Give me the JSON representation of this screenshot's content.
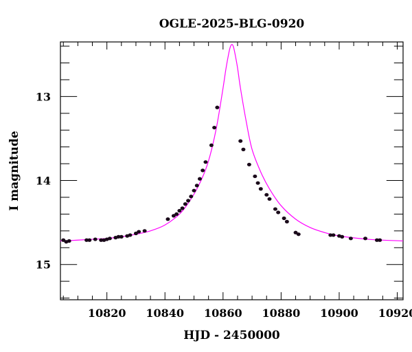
{
  "chart_data": {
    "type": "scatter",
    "title": "OGLE-2025-BLG-0920",
    "xlabel": "HJD - 2450000",
    "ylabel": "I magnitude",
    "xlim": [
      10804,
      10922
    ],
    "ylim": [
      15.42,
      12.35
    ],
    "y_inverted": true,
    "grid": false,
    "x_ticks": [
      10820,
      10840,
      10860,
      10880,
      10900,
      10920
    ],
    "x_tick_labels": [
      "10820",
      "10840",
      "10860",
      "10880",
      "10900",
      "10920"
    ],
    "y_ticks": [
      13,
      14,
      15
    ],
    "y_tick_labels": [
      "13",
      "14",
      "15"
    ],
    "x_minor_step": 5,
    "y_minor_step": 0.2,
    "model_color": "#ff00ff",
    "point_color": "#1a0a1a",
    "model": {
      "x": [
        10804,
        10810,
        10815,
        10820,
        10825,
        10830,
        10835,
        10840,
        10845,
        10848,
        10851,
        10854,
        10856,
        10858,
        10860,
        10861,
        10862,
        10862.5,
        10863,
        10863.5,
        10864,
        10865,
        10866,
        10868,
        10870,
        10873,
        10876,
        10880,
        10885,
        10890,
        10895,
        10900,
        10910,
        10922
      ],
      "y": [
        14.72,
        14.71,
        14.7,
        14.69,
        14.67,
        14.64,
        14.6,
        14.53,
        14.4,
        14.27,
        14.1,
        13.87,
        13.64,
        13.32,
        12.9,
        12.67,
        12.48,
        12.41,
        12.38,
        12.4,
        12.47,
        12.66,
        12.9,
        13.3,
        13.63,
        13.9,
        14.1,
        14.3,
        14.46,
        14.56,
        14.62,
        14.66,
        14.7,
        14.72
      ]
    },
    "series": [
      {
        "x": [
          10805,
          10806,
          10807,
          10813,
          10814,
          10816,
          10818,
          10819,
          10820,
          10821,
          10823,
          10824,
          10825,
          10827,
          10828,
          10830,
          10831,
          10833,
          10841,
          10843,
          10844,
          10845,
          10846,
          10847,
          10848,
          10849,
          10850,
          10851,
          10852,
          10853,
          10854,
          10856,
          10857,
          10858,
          10866,
          10867,
          10869,
          10871,
          10872,
          10873,
          10875,
          10876,
          10878,
          10879,
          10881,
          10882,
          10885,
          10886,
          10897,
          10898,
          10900,
          10901,
          10904,
          10909,
          10913,
          10914
        ],
        "y": [
          14.71,
          14.73,
          14.72,
          14.71,
          14.71,
          14.7,
          14.71,
          14.71,
          14.7,
          14.69,
          14.68,
          14.67,
          14.67,
          14.66,
          14.65,
          14.63,
          14.61,
          14.6,
          14.46,
          14.42,
          14.4,
          14.36,
          14.33,
          14.28,
          14.24,
          14.19,
          14.12,
          14.06,
          13.98,
          13.88,
          13.78,
          13.58,
          13.37,
          13.13,
          13.53,
          13.63,
          13.81,
          13.95,
          14.03,
          14.1,
          14.17,
          14.22,
          14.34,
          14.38,
          14.45,
          14.49,
          14.62,
          14.64,
          14.65,
          14.65,
          14.66,
          14.67,
          14.69,
          14.69,
          14.71,
          14.71
        ]
      }
    ]
  }
}
